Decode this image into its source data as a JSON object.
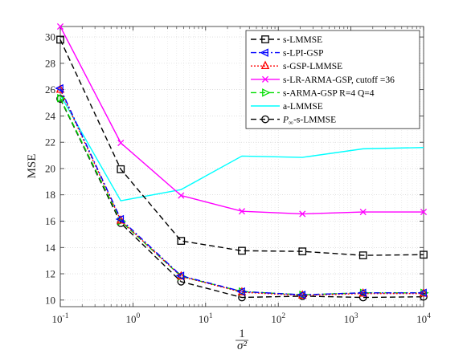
{
  "chart_data": {
    "type": "line",
    "xscale": "log",
    "xlim": [
      0.1,
      10000
    ],
    "ylim": [
      9.5,
      30.8
    ],
    "grid": true,
    "legend_position": "top-right",
    "xlabel_numerator": "1",
    "xlabel_denominator": "σ²",
    "ylabel": "MSE",
    "x_ticks": [
      {
        "value": 0.1,
        "base": "10",
        "exp": "-1"
      },
      {
        "value": 1,
        "base": "10",
        "exp": "0"
      },
      {
        "value": 10,
        "base": "10",
        "exp": "1"
      },
      {
        "value": 100,
        "base": "10",
        "exp": "2"
      },
      {
        "value": 1000,
        "base": "10",
        "exp": "3"
      },
      {
        "value": 10000,
        "base": "10",
        "exp": "4"
      }
    ],
    "y_ticks": [
      10,
      12,
      14,
      16,
      18,
      20,
      22,
      24,
      26,
      28,
      30
    ],
    "x": [
      0.1,
      0.68,
      4.6,
      31.6,
      215,
      1470,
      10000
    ],
    "series": [
      {
        "name": "s-LMMSE",
        "color": "#000000",
        "dash": "7,4",
        "marker": "square",
        "y": [
          29.8,
          19.95,
          14.5,
          13.75,
          13.7,
          13.4,
          13.45
        ]
      },
      {
        "name": "s-LPI-GSP",
        "color": "#0000ff",
        "dash": "7,3,2,3",
        "marker": "triangle-left",
        "y": [
          26.1,
          16.15,
          11.85,
          10.65,
          10.4,
          10.55,
          10.55
        ]
      },
      {
        "name": "s-GSP-LMMSE",
        "color": "#ff0000",
        "dash": "2,2",
        "marker": "triangle-up",
        "y": [
          26.0,
          16.05,
          11.8,
          10.6,
          10.35,
          10.5,
          10.5
        ]
      },
      {
        "name": "s-LR-ARMA-GSP, cutoff =36",
        "color": "#ff00ff",
        "dash": "",
        "marker": "x",
        "y": [
          30.8,
          21.95,
          17.95,
          16.75,
          16.55,
          16.7,
          16.7
        ]
      },
      {
        "name": "s-ARMA-GSP R=4 Q=4",
        "color": "#00dd00",
        "dash": "7,4",
        "marker": "triangle-right",
        "y": [
          25.35,
          16.0,
          11.8,
          10.65,
          10.4,
          10.55,
          10.55
        ]
      },
      {
        "name": "a-LMMSE",
        "color": "#00ffff",
        "dash": "",
        "marker": "none",
        "y": [
          25.6,
          17.55,
          18.4,
          20.95,
          20.85,
          21.5,
          21.6
        ]
      },
      {
        "name": "P∞-s-LMMSE",
        "name_prefix": "P",
        "name_sub": "∞",
        "name_suffix": "-s-LMMSE",
        "color": "#000000",
        "dash": "7,4",
        "marker": "circle",
        "y": [
          25.3,
          15.85,
          11.4,
          10.2,
          10.3,
          10.2,
          10.25
        ]
      }
    ]
  }
}
